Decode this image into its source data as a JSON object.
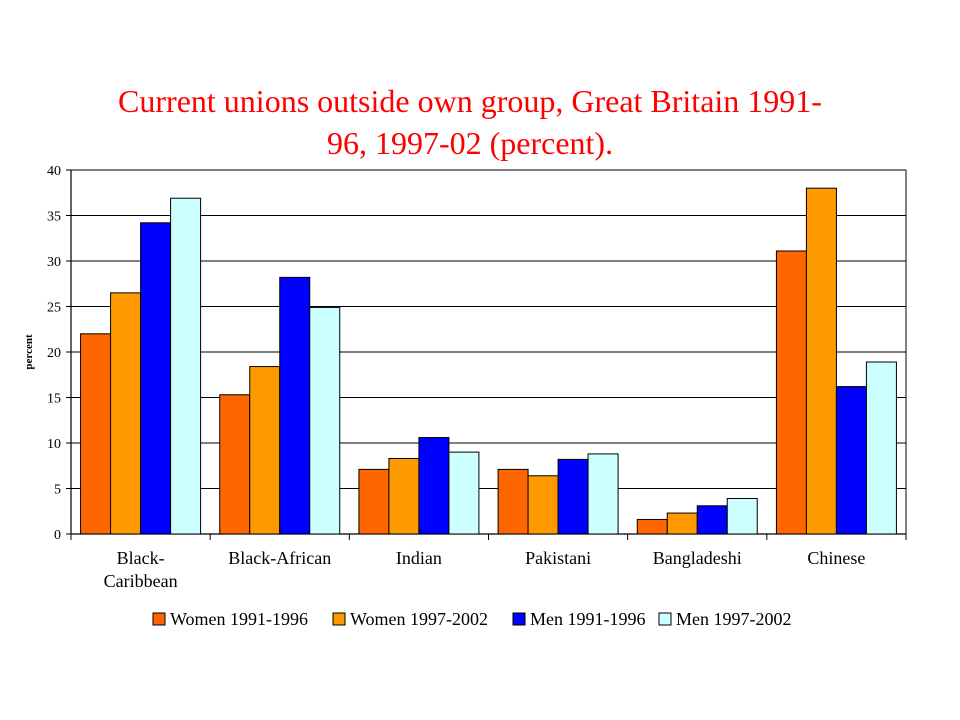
{
  "chart_data": {
    "type": "bar",
    "title_line1": "Current unions outside own group, Great Britain 1991-",
    "title_line2": "96, 1997-02 (percent).",
    "ylabel": "percent",
    "xlabel": "",
    "ylim": [
      0,
      40
    ],
    "yticks": [
      0,
      5,
      10,
      15,
      20,
      25,
      30,
      35,
      40
    ],
    "grid": true,
    "legend_position": "bottom",
    "categories": [
      [
        "Black-",
        "Caribbean"
      ],
      [
        "Black-African"
      ],
      [
        "Indian"
      ],
      [
        "Pakistani"
      ],
      [
        "Bangladeshi"
      ],
      [
        "Chinese"
      ]
    ],
    "series": [
      {
        "name": "Women 1991-1996",
        "color": "#ff6600",
        "values": [
          22.0,
          15.3,
          7.1,
          7.1,
          1.6,
          31.1
        ]
      },
      {
        "name": "Women 1997-2002",
        "color": "#ff9900",
        "values": [
          26.5,
          18.4,
          8.3,
          6.4,
          2.3,
          38.0
        ]
      },
      {
        "name": "Men 1991-1996",
        "color": "#0000ff",
        "values": [
          34.2,
          28.2,
          10.6,
          8.2,
          3.1,
          16.2
        ]
      },
      {
        "name": "Men 1997-2002",
        "color": "#ccffff",
        "values": [
          36.9,
          24.9,
          9.0,
          8.8,
          3.9,
          18.9
        ]
      }
    ]
  }
}
